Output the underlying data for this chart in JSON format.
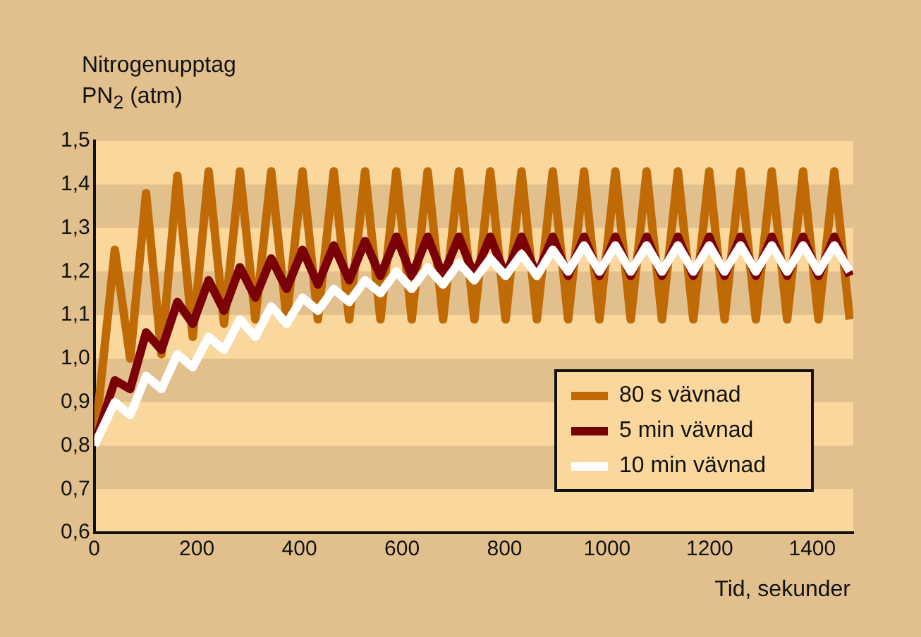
{
  "chart_data": {
    "type": "line",
    "ylabel": "Nitrogenupptag\nPN$_{2}$ (atm)",
    "xlabel": "Tid, sekunder",
    "x": [
      0,
      40,
      70,
      101,
      131,
      162,
      192,
      223,
      253,
      284,
      314,
      345,
      375,
      406,
      436,
      467,
      497,
      528,
      558,
      589,
      619,
      650,
      680,
      711,
      741,
      772,
      802,
      833,
      863,
      894,
      924,
      955,
      985,
      1016,
      1046,
      1077,
      1107,
      1138,
      1168,
      1199,
      1229,
      1260,
      1290,
      1321,
      1351,
      1382,
      1412,
      1443,
      1473
    ],
    "series": [
      {
        "name": "80 s vävnad",
        "color": "#c06a05",
        "values": [
          0.8,
          1.25,
          1.0,
          1.38,
          1.01,
          1.42,
          1.05,
          1.43,
          1.08,
          1.43,
          1.09,
          1.43,
          1.09,
          1.43,
          1.09,
          1.43,
          1.09,
          1.43,
          1.09,
          1.43,
          1.09,
          1.43,
          1.09,
          1.43,
          1.09,
          1.43,
          1.09,
          1.43,
          1.09,
          1.43,
          1.09,
          1.43,
          1.09,
          1.43,
          1.09,
          1.43,
          1.09,
          1.43,
          1.09,
          1.43,
          1.09,
          1.43,
          1.09,
          1.43,
          1.09,
          1.43,
          1.09,
          1.43,
          1.09
        ]
      },
      {
        "name": "5 min vävnad",
        "color": "#7a0008",
        "values": [
          0.8,
          0.95,
          0.93,
          1.06,
          1.02,
          1.13,
          1.08,
          1.18,
          1.11,
          1.21,
          1.14,
          1.23,
          1.16,
          1.25,
          1.17,
          1.26,
          1.18,
          1.27,
          1.19,
          1.28,
          1.19,
          1.28,
          1.19,
          1.28,
          1.19,
          1.28,
          1.19,
          1.28,
          1.19,
          1.28,
          1.19,
          1.28,
          1.19,
          1.28,
          1.19,
          1.28,
          1.19,
          1.28,
          1.19,
          1.28,
          1.19,
          1.28,
          1.19,
          1.28,
          1.19,
          1.28,
          1.19,
          1.28,
          1.19
        ]
      },
      {
        "name": "10 min vävnad",
        "color": "#ffffff",
        "values": [
          0.8,
          0.9,
          0.87,
          0.96,
          0.93,
          1.01,
          0.98,
          1.05,
          1.02,
          1.09,
          1.05,
          1.12,
          1.08,
          1.14,
          1.11,
          1.16,
          1.13,
          1.18,
          1.15,
          1.2,
          1.16,
          1.21,
          1.17,
          1.22,
          1.18,
          1.23,
          1.19,
          1.24,
          1.19,
          1.25,
          1.2,
          1.26,
          1.2,
          1.26,
          1.2,
          1.26,
          1.2,
          1.26,
          1.2,
          1.26,
          1.2,
          1.26,
          1.2,
          1.26,
          1.2,
          1.26,
          1.2,
          1.26,
          1.2
        ]
      }
    ],
    "xlim": [
      0,
      1480
    ],
    "xticks": [
      0,
      200,
      400,
      600,
      800,
      1000,
      1200,
      1400
    ],
    "ylim": [
      0.6,
      1.5
    ],
    "yticks": [
      {
        "value": 0.6,
        "label": "0,6"
      },
      {
        "value": 0.7,
        "label": "0,7"
      },
      {
        "value": 0.8,
        "label": "0,8"
      },
      {
        "value": 0.9,
        "label": "0,9"
      },
      {
        "value": 1.0,
        "label": "1,0"
      },
      {
        "value": 1.1,
        "label": "1,1"
      },
      {
        "value": 1.2,
        "label": "1,2"
      },
      {
        "value": 1.3,
        "label": "1,3"
      },
      {
        "value": 1.4,
        "label": "1,4"
      },
      {
        "value": 1.5,
        "label": "1,5"
      }
    ],
    "bands": [
      {
        "axis": "y",
        "from": 0.6,
        "to": 0.7,
        "color": "#fad89d"
      },
      {
        "axis": "y",
        "from": 0.8,
        "to": 0.9,
        "color": "#fad89d"
      },
      {
        "axis": "y",
        "from": 1.0,
        "to": 1.1,
        "color": "#fad89d"
      },
      {
        "axis": "y",
        "from": 1.2,
        "to": 1.3,
        "color": "#fad89d"
      },
      {
        "axis": "y",
        "from": 1.4,
        "to": 1.5,
        "color": "#fad89d"
      }
    ],
    "legend": "bottom right",
    "marker": "none",
    "line_style": "solid"
  }
}
